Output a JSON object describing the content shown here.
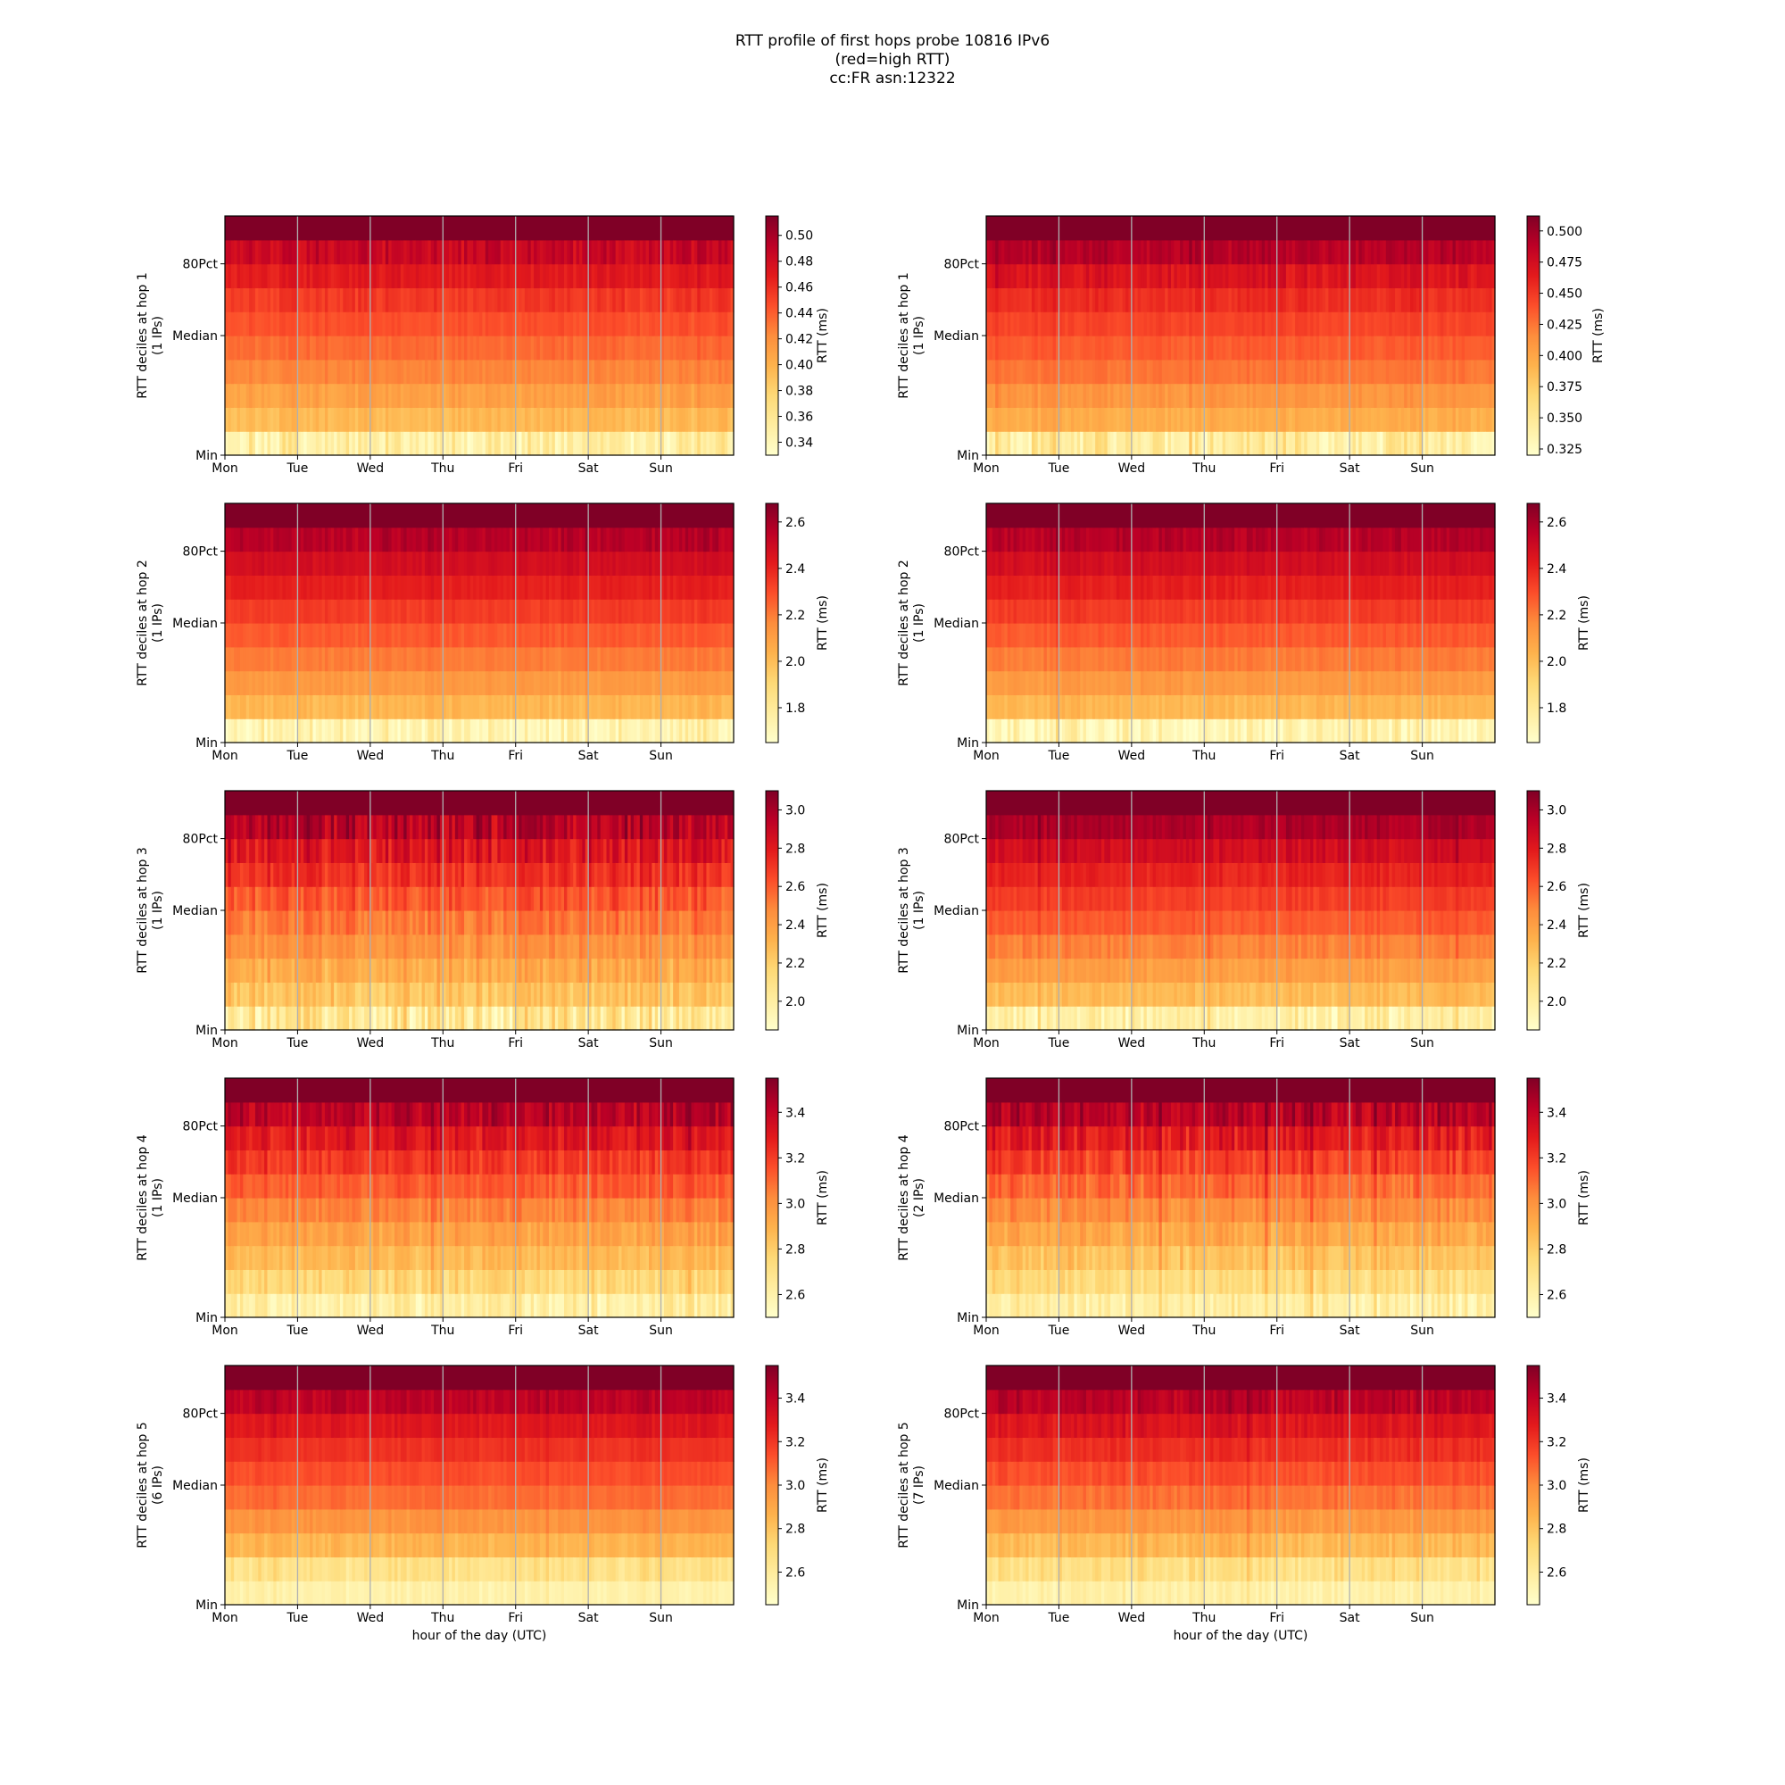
{
  "title_lines": [
    "RTT profile of first hops probe 10816 IPv6",
    "(red=high RTT)",
    "cc:FR asn:12322"
  ],
  "colors": {
    "colormap_name": "YlOrRd",
    "low": "#ffffcc",
    "high": "#800026",
    "day_grid": "#b0b0b0"
  },
  "chart_data": [
    {
      "type": "heatmap",
      "hop": 1,
      "column": "left",
      "ylabel": "RTT deciles at hop 1",
      "ylabel2": "(1 IPs)",
      "ytick_labels": [
        "Min",
        "Median",
        "80Pct"
      ],
      "xtick_labels": [
        "Mon",
        "Tue",
        "Wed",
        "Thu",
        "Fri",
        "Sat",
        "Sun"
      ],
      "xlabel": "",
      "colorbar_label": "RTT (ms)",
      "colorbar_range": [
        0.33,
        0.515
      ],
      "colorbar_ticks": [
        "0.34",
        "0.36",
        "0.38",
        "0.40",
        "0.42",
        "0.44",
        "0.46",
        "0.48",
        "0.50"
      ],
      "deciles_ms": [
        0.35,
        0.395,
        0.41,
        0.425,
        0.435,
        0.445,
        0.455,
        0.47,
        0.485,
        0.51
      ],
      "noise": 0.6,
      "seed": 11
    },
    {
      "type": "heatmap",
      "hop": 1,
      "column": "right",
      "ylabel": "RTT deciles at hop 1",
      "ylabel2": "(1 IPs)",
      "ytick_labels": [
        "Min",
        "Median",
        "80Pct"
      ],
      "xtick_labels": [
        "Mon",
        "Tue",
        "Wed",
        "Thu",
        "Fri",
        "Sat",
        "Sun"
      ],
      "xlabel": "",
      "colorbar_label": "RTT (ms)",
      "colorbar_range": [
        0.32,
        0.512
      ],
      "colorbar_ticks": [
        "0.325",
        "0.350",
        "0.375",
        "0.400",
        "0.425",
        "0.450",
        "0.475",
        "0.500"
      ],
      "deciles_ms": [
        0.345,
        0.395,
        0.41,
        0.425,
        0.435,
        0.445,
        0.455,
        0.47,
        0.49,
        0.51
      ],
      "noise": 0.6,
      "seed": 12
    },
    {
      "type": "heatmap",
      "hop": 2,
      "column": "left",
      "ylabel": "RTT deciles at hop 2",
      "ylabel2": "(1 IPs)",
      "ytick_labels": [
        "Min",
        "Median",
        "80Pct"
      ],
      "xtick_labels": [
        "Mon",
        "Tue",
        "Wed",
        "Thu",
        "Fri",
        "Sat",
        "Sun"
      ],
      "xlabel": "",
      "colorbar_label": "RTT (ms)",
      "colorbar_range": [
        1.65,
        2.68
      ],
      "colorbar_ticks": [
        "1.8",
        "2.0",
        "2.2",
        "2.4",
        "2.6"
      ],
      "deciles_ms": [
        1.72,
        2.02,
        2.12,
        2.2,
        2.27,
        2.34,
        2.41,
        2.48,
        2.56,
        2.68
      ],
      "noise": 0.45,
      "seed": 21
    },
    {
      "type": "heatmap",
      "hop": 2,
      "column": "right",
      "ylabel": "RTT deciles at hop 2",
      "ylabel2": "(1 IPs)",
      "ytick_labels": [
        "Min",
        "Median",
        "80Pct"
      ],
      "xtick_labels": [
        "Mon",
        "Tue",
        "Wed",
        "Thu",
        "Fri",
        "Sat",
        "Sun"
      ],
      "xlabel": "",
      "colorbar_label": "RTT (ms)",
      "colorbar_range": [
        1.65,
        2.68
      ],
      "colorbar_ticks": [
        "1.8",
        "2.0",
        "2.2",
        "2.4",
        "2.6"
      ],
      "deciles_ms": [
        1.72,
        2.02,
        2.12,
        2.2,
        2.27,
        2.34,
        2.41,
        2.48,
        2.56,
        2.68
      ],
      "noise": 0.45,
      "seed": 22
    },
    {
      "type": "heatmap",
      "hop": 3,
      "column": "left",
      "ylabel": "RTT deciles at hop 3",
      "ylabel2": "(1 IPs)",
      "ytick_labels": [
        "Min",
        "Median",
        "80Pct"
      ],
      "xtick_labels": [
        "Mon",
        "Tue",
        "Wed",
        "Thu",
        "Fri",
        "Sat",
        "Sun"
      ],
      "xlabel": "",
      "colorbar_label": "RTT (ms)",
      "colorbar_range": [
        1.85,
        3.1
      ],
      "colorbar_ticks": [
        "2.0",
        "2.2",
        "2.4",
        "2.6",
        "2.8",
        "3.0"
      ],
      "deciles_ms": [
        2.05,
        2.25,
        2.35,
        2.45,
        2.53,
        2.62,
        2.72,
        2.82,
        2.95,
        3.1
      ],
      "noise": 1.2,
      "seed": 31
    },
    {
      "type": "heatmap",
      "hop": 3,
      "column": "right",
      "ylabel": "RTT deciles at hop 3",
      "ylabel2": "(1 IPs)",
      "ytick_labels": [
        "Min",
        "Median",
        "80Pct"
      ],
      "xtick_labels": [
        "Mon",
        "Tue",
        "Wed",
        "Thu",
        "Fri",
        "Sat",
        "Sun"
      ],
      "xlabel": "",
      "colorbar_label": "RTT (ms)",
      "colorbar_range": [
        1.85,
        3.1
      ],
      "colorbar_ticks": [
        "2.0",
        "2.2",
        "2.4",
        "2.6",
        "2.8",
        "3.0"
      ],
      "deciles_ms": [
        1.98,
        2.28,
        2.4,
        2.5,
        2.6,
        2.68,
        2.76,
        2.86,
        2.98,
        3.1
      ],
      "noise": 0.6,
      "seed": 32
    },
    {
      "type": "heatmap",
      "hop": 4,
      "column": "left",
      "ylabel": "RTT deciles at hop 4",
      "ylabel2": "(1 IPs)",
      "ytick_labels": [
        "Min",
        "Median",
        "80Pct"
      ],
      "xtick_labels": [
        "Mon",
        "Tue",
        "Wed",
        "Thu",
        "Fri",
        "Sat",
        "Sun"
      ],
      "xlabel": "",
      "colorbar_label": "RTT (ms)",
      "colorbar_range": [
        2.5,
        3.55
      ],
      "colorbar_ticks": [
        "2.6",
        "2.8",
        "3.0",
        "3.2",
        "3.4"
      ],
      "deciles_ms": [
        2.62,
        2.76,
        2.87,
        2.95,
        3.04,
        3.13,
        3.21,
        3.3,
        3.42,
        3.55
      ],
      "noise": 0.9,
      "seed": 41
    },
    {
      "type": "heatmap",
      "hop": 4,
      "column": "right",
      "ylabel": "RTT deciles at hop 4",
      "ylabel2": "(2 IPs)",
      "ytick_labels": [
        "Min",
        "Median",
        "80Pct"
      ],
      "xtick_labels": [
        "Mon",
        "Tue",
        "Wed",
        "Thu",
        "Fri",
        "Sat",
        "Sun"
      ],
      "xlabel": "",
      "colorbar_label": "RTT (ms)",
      "colorbar_range": [
        2.5,
        3.55
      ],
      "colorbar_ticks": [
        "2.6",
        "2.8",
        "3.0",
        "3.2",
        "3.4"
      ],
      "deciles_ms": [
        2.62,
        2.74,
        2.84,
        2.93,
        3.02,
        3.1,
        3.19,
        3.29,
        3.42,
        3.55
      ],
      "noise": 1.0,
      "seed": 42
    },
    {
      "type": "heatmap",
      "hop": 5,
      "column": "left",
      "ylabel": "RTT deciles at hop 5",
      "ylabel2": "(6 IPs)",
      "ytick_labels": [
        "Min",
        "Median",
        "80Pct"
      ],
      "xtick_labels": [
        "Mon",
        "Tue",
        "Wed",
        "Thu",
        "Fri",
        "Sat",
        "Sun"
      ],
      "xlabel": "hour of the day (UTC)",
      "colorbar_label": "RTT (ms)",
      "colorbar_range": [
        2.45,
        3.55
      ],
      "colorbar_ticks": [
        "2.6",
        "2.8",
        "3.0",
        "3.2",
        "3.4"
      ],
      "deciles_ms": [
        2.55,
        2.66,
        2.85,
        2.97,
        3.07,
        3.14,
        3.21,
        3.29,
        3.4,
        3.55
      ],
      "noise": 0.45,
      "seed": 51
    },
    {
      "type": "heatmap",
      "hop": 5,
      "column": "right",
      "ylabel": "RTT deciles at hop 5",
      "ylabel2": "(7 IPs)",
      "ytick_labels": [
        "Min",
        "Median",
        "80Pct"
      ],
      "xtick_labels": [
        "Mon",
        "Tue",
        "Wed",
        "Thu",
        "Fri",
        "Sat",
        "Sun"
      ],
      "xlabel": "hour of the day (UTC)",
      "colorbar_label": "RTT (ms)",
      "colorbar_range": [
        2.45,
        3.55
      ],
      "colorbar_ticks": [
        "2.6",
        "2.8",
        "3.0",
        "3.2",
        "3.4"
      ],
      "deciles_ms": [
        2.56,
        2.68,
        2.84,
        2.96,
        3.06,
        3.14,
        3.22,
        3.3,
        3.41,
        3.55
      ],
      "noise": 0.6,
      "seed": 52
    }
  ]
}
